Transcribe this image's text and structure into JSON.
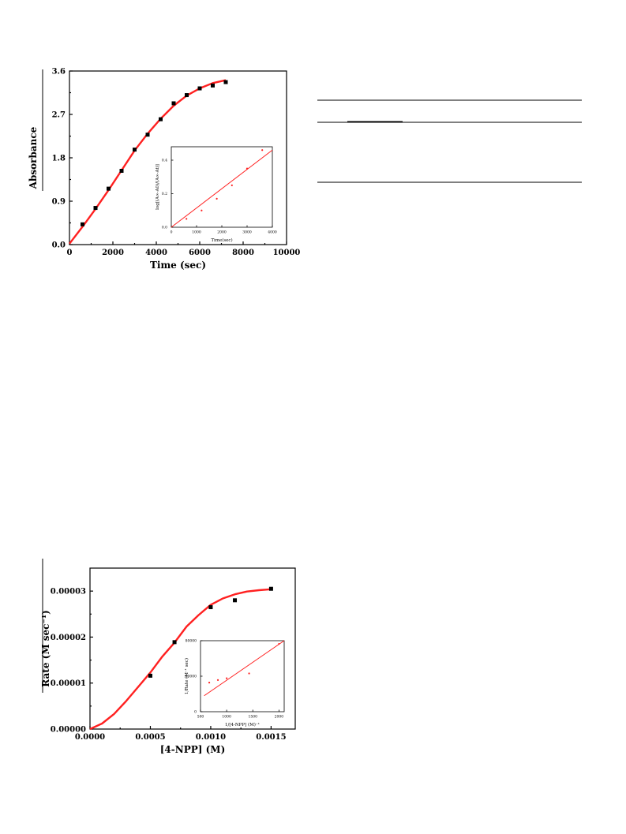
{
  "chart_data": [
    {
      "type": "scatter",
      "title": "",
      "xlabel": "Time (sec)",
      "ylabel": "Absorbance",
      "xlim": [
        0,
        10000
      ],
      "ylim": [
        0,
        3.6
      ],
      "xticks": [
        0,
        2000,
        4000,
        6000,
        8000,
        10000
      ],
      "xtick_labels": [
        "0",
        "2000",
        "4000",
        "6000",
        "8000",
        "10000"
      ],
      "yticks": [
        0.0,
        0.9,
        1.8,
        2.7,
        3.6
      ],
      "ytick_labels": [
        "0.0",
        "0.9",
        "1.8",
        "2.7",
        "3.6"
      ],
      "grid": false,
      "series": [
        {
          "x": [
            600,
            1200,
            1800,
            2400,
            3000,
            3600,
            4200,
            4800,
            5400,
            6000,
            6600,
            7200
          ],
          "y": [
            0.42,
            0.76,
            1.16,
            1.53,
            1.97,
            2.28,
            2.6,
            2.93,
            3.1,
            3.24,
            3.3,
            3.37
          ],
          "color": "#000000"
        }
      ],
      "fit_curve": {
        "x": [
          0,
          600,
          1200,
          1800,
          2400,
          3000,
          3600,
          4200,
          4800,
          5400,
          6000,
          6600,
          7200
        ],
        "y": [
          0.02,
          0.37,
          0.74,
          1.13,
          1.54,
          1.95,
          2.3,
          2.61,
          2.88,
          3.09,
          3.24,
          3.35,
          3.41
        ],
        "color": "#ff2020"
      },
      "inset": {
        "type": "scatter",
        "xlabel": "Time(sec)",
        "ylabel": "log[(A∞-A0)/(A∞-At)]",
        "xlim": [
          0,
          4000
        ],
        "ylim": [
          0,
          0.48
        ],
        "xticks": [
          0,
          1000,
          2000,
          3000,
          4000
        ],
        "xtick_labels": [
          "0",
          "1000",
          "2000",
          "3000",
          "4000"
        ],
        "yticks": [
          0.0,
          0.2,
          0.4
        ],
        "ytick_labels": [
          "0.0",
          "0.2",
          "0.4"
        ],
        "points": {
          "x": [
            600,
            1200,
            1800,
            2400,
            3000,
            3600
          ],
          "y": [
            0.05,
            0.1,
            0.17,
            0.25,
            0.35,
            0.46
          ],
          "color": "#ff2020"
        },
        "fit_line": {
          "x": [
            0,
            4000
          ],
          "y": [
            0,
            0.46
          ],
          "color": "#ff2020"
        }
      }
    },
    {
      "type": "scatter",
      "title": "",
      "xlabel": "[4-NPP] (M)",
      "ylabel": "Rate (M sec⁻¹)",
      "xlim": [
        0,
        0.0017
      ],
      "ylim": [
        0,
        3.5e-05
      ],
      "xticks": [
        0,
        0.0005,
        0.001,
        0.0015
      ],
      "xtick_labels": [
        "0.0000",
        "0.0005",
        "0.0010",
        "0.0015"
      ],
      "yticks": [
        0,
        1e-05,
        2e-05,
        3e-05
      ],
      "ytick_labels": [
        "0.00000",
        "0.00001",
        "0.00002",
        "0.00003"
      ],
      "grid": false,
      "series": [
        {
          "x": [
            0.0005,
            0.0007,
            0.001,
            0.0012,
            0.0015
          ],
          "y": [
            1.16e-05,
            1.89e-05,
            2.65e-05,
            2.8e-05,
            3.05e-05
          ],
          "color": "#000000"
        }
      ],
      "fit_curve": {
        "x": [
          0,
          0.0001,
          0.0002,
          0.0003,
          0.0004,
          0.0005,
          0.0006,
          0.0007,
          0.0008,
          0.0009,
          0.001,
          0.0011,
          0.0012,
          0.0013,
          0.0014,
          0.0015
        ],
        "y": [
          0,
          1.2e-06,
          3.3e-06,
          6.1e-06,
          9.2e-06,
          1.23e-05,
          1.58e-05,
          1.88e-05,
          2.23e-05,
          2.48e-05,
          2.7e-05,
          2.84e-05,
          2.93e-05,
          2.99e-05,
          3.02e-05,
          3.04e-05
        ],
        "color": "#ff2020"
      },
      "inset": {
        "type": "scatter",
        "xlabel": "1/[4-NPP] (M)⁻¹",
        "ylabel": "1/Rate (M⁻¹ sec)",
        "xlim": [
          500,
          2100
        ],
        "ylim": [
          0,
          80000
        ],
        "xticks": [
          500,
          1000,
          1500,
          2000
        ],
        "xtick_labels": [
          "500",
          "1000",
          "1500",
          "2000"
        ],
        "yticks": [
          0,
          40000,
          80000
        ],
        "ytick_labels": [
          "0",
          "40000",
          "80000"
        ],
        "points": {
          "x": [
            667,
            833,
            1000,
            1429,
            2000
          ],
          "y": [
            32800,
            35700,
            37700,
            43100,
            76400
          ],
          "color": "#ff2020"
        },
        "fit_line": {
          "x": [
            570,
            2100
          ],
          "y": [
            18000,
            80000
          ],
          "color": "#ff2020"
        }
      }
    }
  ]
}
